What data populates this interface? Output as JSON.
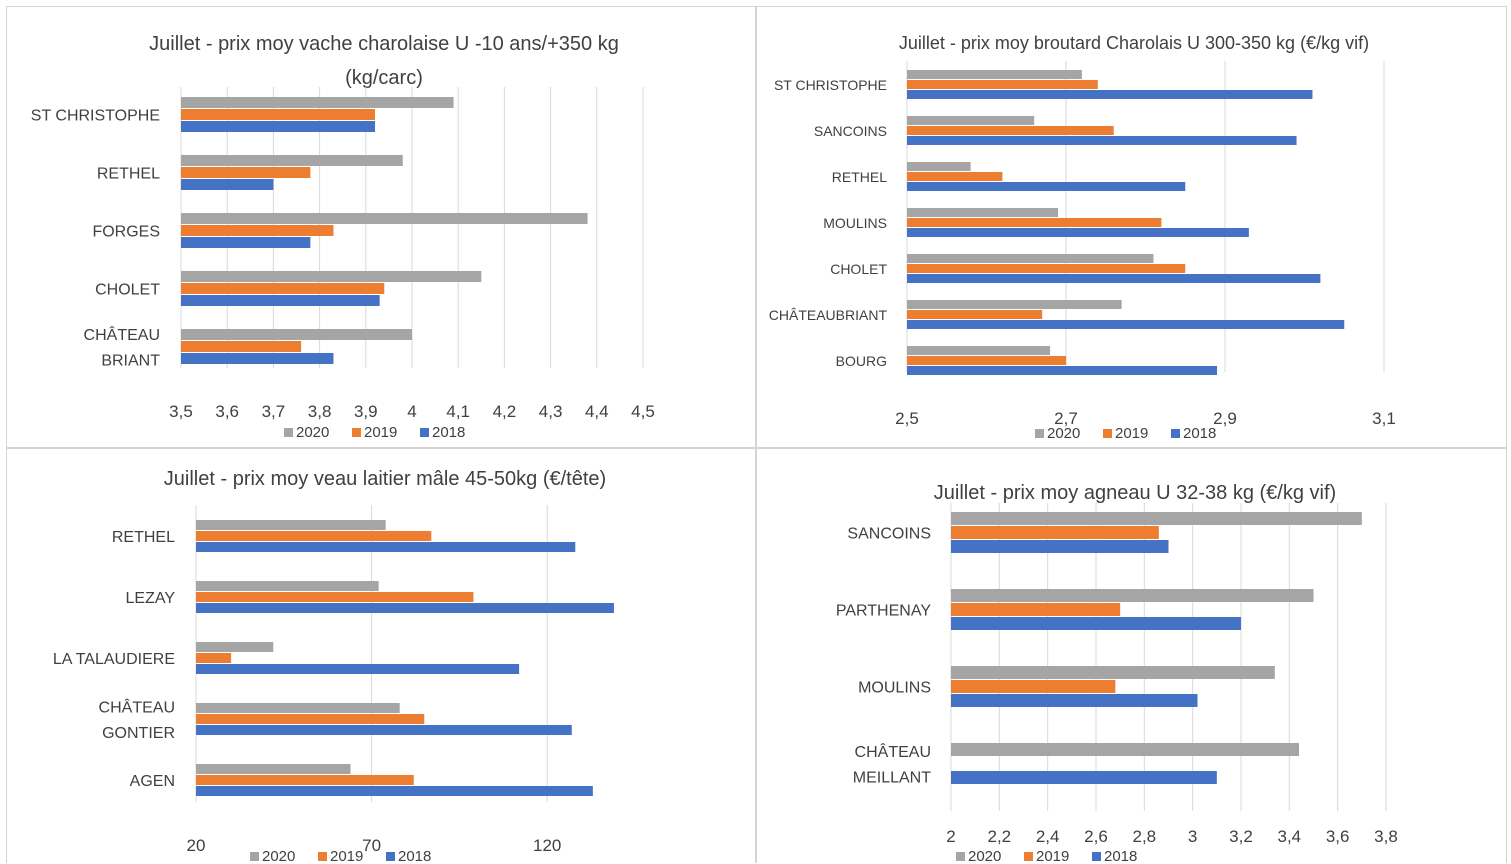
{
  "colors": {
    "2020": "#a5a5a5",
    "2019": "#ed7d31",
    "2018": "#4472c4",
    "grid": "#d9d9d9"
  },
  "chart_data": [
    {
      "type": "bar",
      "orientation": "horizontal",
      "title_lines": [
        "Juillet - prix moy vache charolaise U -10 ans/+350 kg",
        "(kg/carc)"
      ],
      "categories": [
        "ST CHRISTOPHE",
        "RETHEL",
        "FORGES",
        "CHOLET",
        "CHÂTEAU BRIANT"
      ],
      "category_lines": [
        [
          "ST CHRISTOPHE"
        ],
        [
          "RETHEL"
        ],
        [
          "FORGES"
        ],
        [
          "CHOLET"
        ],
        [
          "CHÂTEAU",
          "BRIANT"
        ]
      ],
      "series": [
        {
          "name": "2020",
          "values": [
            4.09,
            3.98,
            4.38,
            4.15,
            4.0
          ]
        },
        {
          "name": "2019",
          "values": [
            3.92,
            3.78,
            3.83,
            3.94,
            3.76
          ]
        },
        {
          "name": "2018",
          "values": [
            3.92,
            3.7,
            3.78,
            3.93,
            3.83
          ]
        }
      ],
      "xlim": [
        3.5,
        4.5
      ],
      "xticks": [
        "3,5",
        "3,6",
        "3,7",
        "3,8",
        "3,9",
        "4",
        "4,1",
        "4,2",
        "4,3",
        "4,4",
        "4,5"
      ],
      "xtick_values": [
        3.5,
        3.6,
        3.7,
        3.8,
        3.9,
        4.0,
        4.1,
        4.2,
        4.3,
        4.4,
        4.5
      ],
      "legend": [
        "2020",
        "2019",
        "2018"
      ],
      "legend_position": "bottom",
      "grid": true
    },
    {
      "type": "bar",
      "orientation": "horizontal",
      "title_lines": [
        "Juillet - prix moy broutard Charolais U 300-350 kg (€/kg vif)"
      ],
      "categories": [
        "ST CHRISTOPHE",
        "SANCOINS",
        "RETHEL",
        "MOULINS",
        "CHOLET",
        "CHÂTEAUBRIANT",
        "BOURG"
      ],
      "category_lines": [
        [
          "ST CHRISTOPHE"
        ],
        [
          "SANCOINS"
        ],
        [
          "RETHEL"
        ],
        [
          "MOULINS"
        ],
        [
          "CHOLET"
        ],
        [
          "CHÂTEAUBRIANT"
        ],
        [
          "BOURG"
        ]
      ],
      "series": [
        {
          "name": "2020",
          "values": [
            2.72,
            2.66,
            2.58,
            2.69,
            2.81,
            2.77,
            2.68
          ]
        },
        {
          "name": "2019",
          "values": [
            2.74,
            2.76,
            2.62,
            2.82,
            2.85,
            2.67,
            2.7
          ]
        },
        {
          "name": "2018",
          "values": [
            3.01,
            2.99,
            2.85,
            2.93,
            3.02,
            3.05,
            2.89
          ]
        }
      ],
      "xlim": [
        2.5,
        3.1
      ],
      "xticks": [
        "2,5",
        "2,7",
        "2,9",
        "3,1"
      ],
      "xtick_values": [
        2.5,
        2.7,
        2.9,
        3.1
      ],
      "legend": [
        "2020",
        "2019",
        "2018"
      ],
      "legend_position": "bottom",
      "grid": true
    },
    {
      "type": "bar",
      "orientation": "horizontal",
      "title_lines": [
        "Juillet - prix moy veau laitier mâle 45-50kg (€/tête)"
      ],
      "categories": [
        "RETHEL",
        "LEZAY",
        "LA TALAUDIERE",
        "CHÂTEAU GONTIER",
        "AGEN"
      ],
      "category_lines": [
        [
          "RETHEL"
        ],
        [
          "LEZAY"
        ],
        [
          "LA TALAUDIERE"
        ],
        [
          "CHÂTEAU",
          "GONTIER"
        ],
        [
          "AGEN"
        ]
      ],
      "series": [
        {
          "name": "2020",
          "values": [
            74,
            72,
            42,
            78,
            64
          ]
        },
        {
          "name": "2019",
          "values": [
            87,
            99,
            30,
            85,
            82
          ]
        },
        {
          "name": "2018",
          "values": [
            128,
            139,
            112,
            127,
            133
          ]
        }
      ],
      "xlim": [
        20,
        145
      ],
      "xticks": [
        "20",
        "70",
        "120"
      ],
      "xtick_values": [
        20,
        70,
        120
      ],
      "legend": [
        "2020",
        "2019",
        "2018"
      ],
      "legend_position": "bottom",
      "grid": true
    },
    {
      "type": "bar",
      "orientation": "horizontal",
      "title_lines": [
        "Juillet - prix moy agneau U 32-38 kg (€/kg vif)"
      ],
      "categories": [
        "SANCOINS",
        "PARTHENAY",
        "MOULINS",
        "CHÂTEAU MEILLANT"
      ],
      "category_lines": [
        [
          "SANCOINS"
        ],
        [
          "PARTHENAY"
        ],
        [
          "MOULINS"
        ],
        [
          "CHÂTEAU",
          "MEILLANT"
        ]
      ],
      "series": [
        {
          "name": "2020",
          "values": [
            3.7,
            3.5,
            3.34,
            3.44
          ]
        },
        {
          "name": "2019",
          "values": [
            2.86,
            2.7,
            2.68,
            null
          ]
        },
        {
          "name": "2018",
          "values": [
            2.9,
            3.2,
            3.02,
            3.1
          ]
        }
      ],
      "xlim": [
        2,
        3.8
      ],
      "xticks": [
        "2",
        "2,2",
        "2,4",
        "2,6",
        "2,8",
        "3",
        "3,2",
        "3,4",
        "3,6",
        "3,8"
      ],
      "xtick_values": [
        2.0,
        2.2,
        2.4,
        2.6,
        2.8,
        3.0,
        3.2,
        3.4,
        3.6,
        3.8
      ],
      "legend": [
        "2020",
        "2019",
        "2018"
      ],
      "legend_position": "bottom",
      "grid": true
    }
  ]
}
